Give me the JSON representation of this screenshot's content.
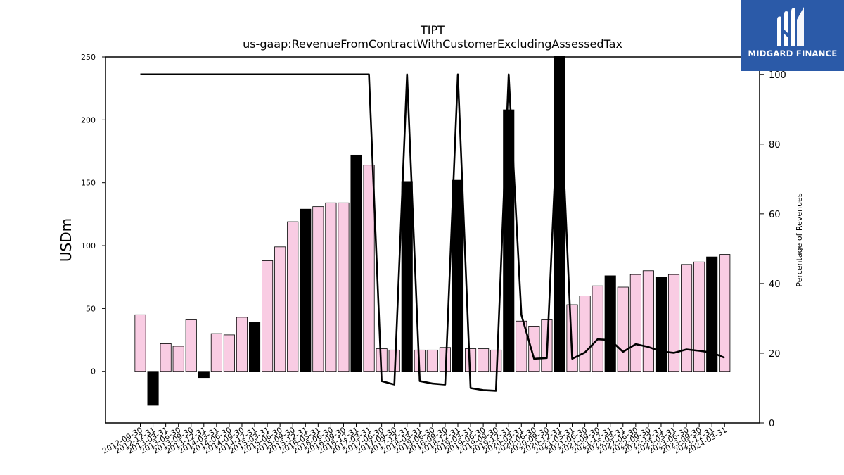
{
  "logo": {
    "text": "MIDGARD FINANCE"
  },
  "chart_data": {
    "type": "bar",
    "title": "TIPT",
    "subtitle": "us-gaap:RevenueFromContractWithCustomerExcludingAssessedTax",
    "ylabel": "USDm",
    "y2label": "Percentage of Revenues",
    "ylim": [
      -41,
      250
    ],
    "y2lim": [
      0,
      105
    ],
    "yticks": [
      0,
      50,
      100,
      150,
      200,
      250
    ],
    "y2ticks": [
      0,
      20,
      40,
      60,
      80,
      100
    ],
    "colors": {
      "quarter": "#f9cce3",
      "annual": "#000000",
      "line": "#000000"
    },
    "categories": [
      "2012-09-30",
      "2012-12-31",
      "2013-03-31",
      "2013-06-30",
      "2013-09-30",
      "2013-12-31",
      "2014-03-31",
      "2014-06-30",
      "2014-09-30",
      "2014-12-31",
      "2015-03-31",
      "2015-06-30",
      "2015-09-30",
      "2015-12-31",
      "2016-03-31",
      "2016-06-30",
      "2016-09-30",
      "2016-12-31",
      "2017-03-31",
      "2017-06-30",
      "2017-09-30",
      "2017-12-31",
      "2018-03-31",
      "2018-06-30",
      "2018-09-30",
      "2018-12-31",
      "2019-03-31",
      "2019-06-30",
      "2019-09-30",
      "2019-12-31",
      "2020-03-31",
      "2020-06-30",
      "2020-09-30",
      "2020-12-31",
      "2021-03-31",
      "2021-06-30",
      "2021-09-30",
      "2021-12-31",
      "2022-03-31",
      "2022-06-30",
      "2022-09-30",
      "2022-12-31",
      "2023-03-31",
      "2023-06-30",
      "2023-09-30",
      "2023-12-31",
      "2024-03-31"
    ],
    "series": [
      {
        "kind": "bar",
        "values": [
          45,
          -27,
          22,
          20,
          41,
          -5,
          30,
          29,
          43,
          39,
          88,
          99,
          119,
          129,
          131,
          134,
          134,
          172,
          164,
          18,
          17,
          151,
          17,
          17,
          19,
          152,
          18,
          18,
          17,
          208,
          40,
          36,
          41,
          252,
          53,
          60,
          68,
          76,
          67,
          77,
          80,
          75,
          77,
          85,
          87,
          91,
          93
        ],
        "annual": [
          false,
          true,
          false,
          false,
          false,
          true,
          false,
          false,
          false,
          true,
          false,
          false,
          false,
          true,
          false,
          false,
          false,
          true,
          false,
          false,
          false,
          true,
          false,
          false,
          false,
          true,
          false,
          false,
          false,
          true,
          false,
          false,
          false,
          true,
          false,
          false,
          false,
          true,
          false,
          false,
          false,
          true,
          false,
          false,
          false,
          true,
          false
        ]
      },
      {
        "kind": "line",
        "axis": "right",
        "values": [
          100,
          100,
          100,
          100,
          100,
          100,
          100,
          100,
          100,
          100,
          100,
          100,
          100,
          100,
          100,
          100,
          100,
          100,
          100,
          12,
          11,
          100,
          12,
          11.3,
          11,
          100,
          10,
          9.4,
          9.2,
          100,
          31,
          18.4,
          18.6,
          100,
          18.4,
          20.2,
          24,
          23.8,
          20.4,
          22.6,
          21.8,
          20.5,
          20.1,
          21.1,
          20.7,
          20.2,
          18.7
        ]
      }
    ]
  }
}
